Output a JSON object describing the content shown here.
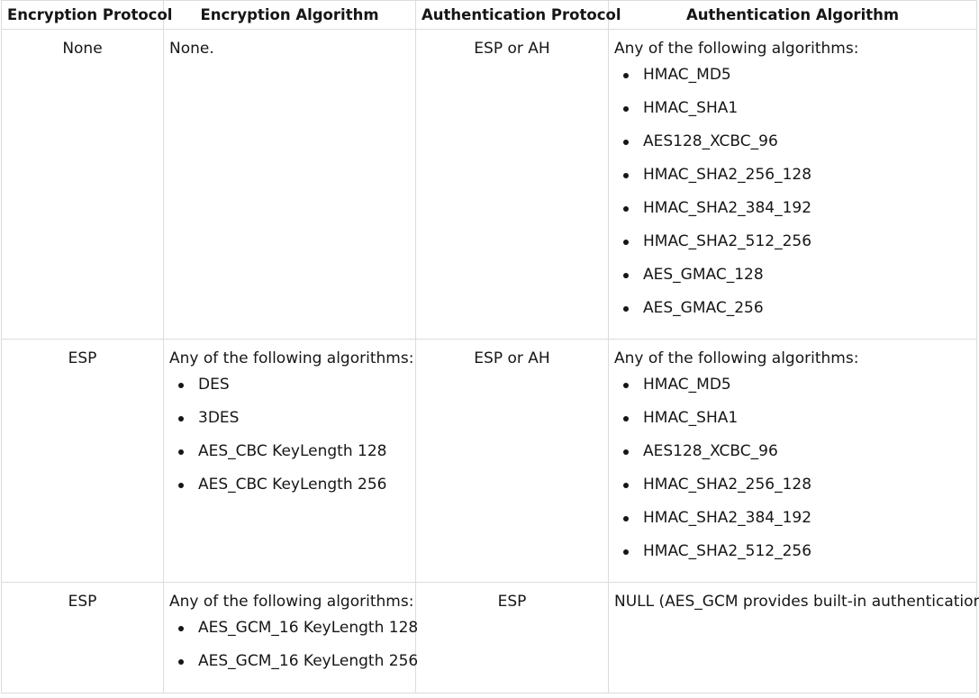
{
  "headers": [
    "Encryption Protocol",
    "Encryption Algorithm",
    "Authentication Protocol",
    "Authentication Algorithm"
  ],
  "rows": [
    {
      "enc_protocol": "None",
      "enc_algorithm": {
        "text": "None.",
        "items": []
      },
      "auth_protocol": "ESP or AH",
      "auth_algorithm": {
        "text": "Any of the following algorithms:",
        "items": [
          "HMAC_MD5",
          "HMAC_SHA1",
          "AES128_XCBC_96",
          "HMAC_SHA2_256_128",
          "HMAC_SHA2_384_192",
          "HMAC_SHA2_512_256",
          "AES_GMAC_128",
          "AES_GMAC_256"
        ]
      }
    },
    {
      "enc_protocol": "ESP",
      "enc_algorithm": {
        "text": "Any of the following algorithms:",
        "items": [
          "DES",
          "3DES",
          "AES_CBC KeyLength 128",
          "AES_CBC KeyLength 256"
        ]
      },
      "auth_protocol": "ESP or AH",
      "auth_algorithm": {
        "text": "Any of the following algorithms:",
        "items": [
          "HMAC_MD5",
          "HMAC_SHA1",
          "AES128_XCBC_96",
          "HMAC_SHA2_256_128",
          "HMAC_SHA2_384_192",
          "HMAC_SHA2_512_256"
        ]
      }
    },
    {
      "enc_protocol": "ESP",
      "enc_algorithm": {
        "text": "Any of the following algorithms:",
        "items": [
          "AES_GCM_16 KeyLength 128",
          "AES_GCM_16 KeyLength 256"
        ]
      },
      "auth_protocol": "ESP",
      "auth_algorithm": {
        "text": "NULL (AES_GCM provides built-in authentication)",
        "items": []
      }
    }
  ]
}
